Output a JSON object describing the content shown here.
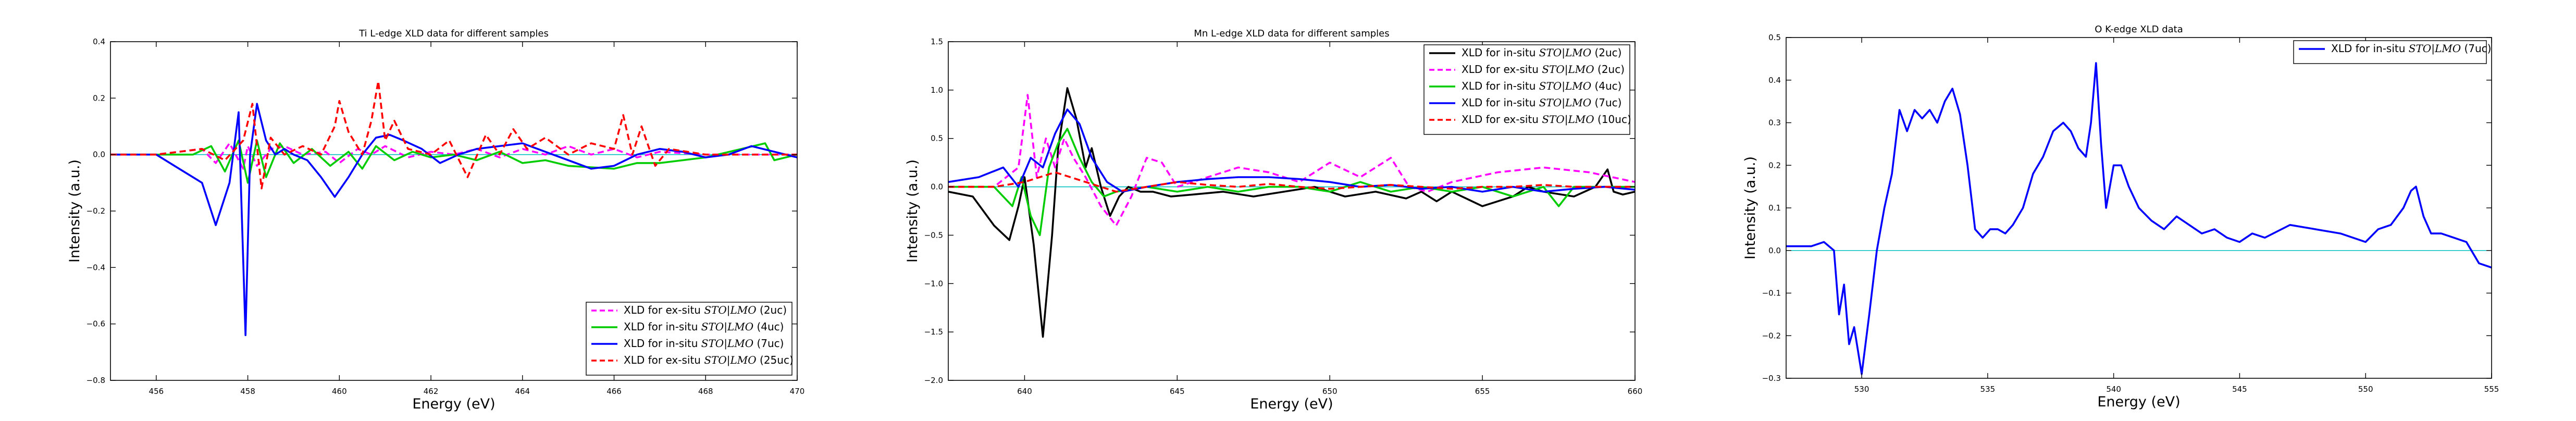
{
  "chart_data": [
    {
      "type": "line",
      "title": "Ti L-edge XLD data for different samples",
      "xlabel": "Energy (eV)",
      "ylabel": "Intensity (a.u.)",
      "xlim": [
        455,
        470
      ],
      "ylim": [
        -0.8,
        0.4
      ],
      "xticks": [
        456,
        458,
        460,
        462,
        464,
        466,
        468,
        470
      ],
      "xtick_labels": [
        "456",
        "458",
        "460",
        "462",
        "464",
        "466",
        "468",
        "470"
      ],
      "yticks": [
        -0.8,
        -0.6,
        -0.4,
        -0.2,
        0.0,
        0.2,
        0.4
      ],
      "ytick_labels": [
        "−0.8",
        "−0.6",
        "−0.4",
        "−0.2",
        "0.0",
        "0.2",
        "0.4"
      ],
      "legend_position": "lower-right",
      "grid": false,
      "baseline": 0,
      "series": [
        {
          "name": "XLD for ex-situ",
          "name_math": "STO|LMO",
          "name_suffix": "(2uc)",
          "color": "#ff00ff",
          "dash": "dashed",
          "x": [
            455,
            456,
            457,
            457.3,
            457.6,
            457.9,
            458.0,
            458.2,
            458.5,
            458.8,
            459.2,
            459.7,
            460.0,
            460.4,
            460.7,
            461.0,
            461.5,
            462,
            462.5,
            463,
            463.5,
            464,
            464.5,
            465,
            465.5,
            466,
            466.5,
            467,
            468,
            469,
            470
          ],
          "y": [
            0,
            0.0,
            0.02,
            -0.03,
            0.04,
            -0.05,
            0.03,
            -0.04,
            0.02,
            0.03,
            0.0,
            0.01,
            -0.03,
            0.02,
            0.0,
            0.03,
            -0.01,
            0.01,
            0.0,
            0.02,
            -0.01,
            0.02,
            0.0,
            0.03,
            0.0,
            0.02,
            -0.01,
            0.01,
            0.0,
            0.0,
            0
          ]
        },
        {
          "name": "XLD for in-situ",
          "name_math": "STO|LMO",
          "name_suffix": "(4uc)",
          "color": "#00cc00",
          "dash": "solid",
          "x": [
            455,
            456,
            456.8,
            457.2,
            457.5,
            457.8,
            458.0,
            458.2,
            458.4,
            458.7,
            459.0,
            459.4,
            459.8,
            460.2,
            460.5,
            460.8,
            461.2,
            461.6,
            462,
            462.5,
            463,
            463.5,
            464,
            464.5,
            465,
            466,
            466.5,
            467,
            468,
            469.3,
            469.5,
            470
          ],
          "y": [
            0,
            0.0,
            0.0,
            0.03,
            -0.06,
            0.05,
            -0.1,
            0.05,
            -0.08,
            0.04,
            -0.03,
            0.02,
            -0.04,
            0.01,
            -0.05,
            0.03,
            -0.02,
            0.01,
            -0.01,
            0.0,
            -0.02,
            0.01,
            -0.03,
            -0.02,
            -0.04,
            -0.05,
            -0.03,
            -0.03,
            -0.01,
            0.04,
            -0.02,
            0
          ]
        },
        {
          "name": "XLD for in-situ",
          "name_math": "STO|LMO",
          "name_suffix": "(7uc)",
          "color": "#0000ff",
          "dash": "solid",
          "x": [
            455,
            456,
            456.5,
            457,
            457.3,
            457.6,
            457.8,
            457.95,
            458.05,
            458.2,
            458.4,
            458.6,
            458.8,
            459.0,
            459.3,
            459.6,
            459.9,
            460.2,
            460.5,
            460.8,
            461.1,
            461.4,
            461.8,
            462.2,
            462.6,
            463,
            463.5,
            464,
            464.5,
            465,
            465.5,
            466,
            466.5,
            467,
            467.5,
            468,
            468.5,
            469,
            469.5,
            470
          ],
          "y": [
            0,
            0.0,
            -0.05,
            -0.1,
            -0.25,
            -0.1,
            0.15,
            -0.64,
            0.0,
            0.18,
            0.05,
            0.0,
            0.02,
            0.0,
            -0.02,
            -0.08,
            -0.15,
            -0.08,
            0.0,
            0.06,
            0.07,
            0.05,
            0.02,
            -0.03,
            0.0,
            0.02,
            0.03,
            0.04,
            0.01,
            -0.02,
            -0.05,
            -0.04,
            0.0,
            0.02,
            0.01,
            -0.01,
            0.0,
            0.03,
            0.01,
            -0.01
          ]
        },
        {
          "name": "XLD for ex-situ",
          "name_math": "STO|LMO",
          "name_suffix": "(25uc)",
          "color": "#ff0000",
          "dash": "dashed",
          "x": [
            455,
            456,
            457,
            457.5,
            457.9,
            458.1,
            458.3,
            458.5,
            458.8,
            459.2,
            459.6,
            459.9,
            460.0,
            460.2,
            460.5,
            460.7,
            460.85,
            461.0,
            461.2,
            461.5,
            462,
            462.4,
            462.8,
            463.2,
            463.5,
            463.8,
            464.1,
            464.5,
            465,
            465.5,
            466,
            466.2,
            466.4,
            466.6,
            466.9,
            467.2,
            468,
            469,
            470
          ],
          "y": [
            0,
            0.0,
            0.02,
            -0.02,
            0.05,
            0.18,
            -0.12,
            0.06,
            0.0,
            0.03,
            0.0,
            0.1,
            0.19,
            0.08,
            0.0,
            0.12,
            0.26,
            0.05,
            0.12,
            0.02,
            0.0,
            0.05,
            -0.08,
            0.07,
            0.0,
            0.09,
            0.02,
            0.06,
            0.0,
            0.04,
            0.02,
            0.14,
            0.0,
            0.1,
            -0.04,
            0.02,
            0.0,
            0.0,
            0
          ]
        }
      ]
    },
    {
      "type": "line",
      "title": "Mn L-edge XLD data for different samples",
      "xlabel": "Energy (eV)",
      "ylabel": "Intensity (a.u.)",
      "xlim": [
        637.5,
        660
      ],
      "ylim": [
        -2.0,
        1.5
      ],
      "xticks": [
        640,
        645,
        650,
        655,
        660
      ],
      "xtick_labels": [
        "640",
        "645",
        "650",
        "655",
        "660"
      ],
      "yticks": [
        -2.0,
        -1.5,
        -1.0,
        -0.5,
        0.0,
        0.5,
        1.0,
        1.5
      ],
      "ytick_labels": [
        "−2.0",
        "−1.5",
        "−1.0",
        "−0.5",
        "0.0",
        "0.5",
        "1.0",
        "1.5"
      ],
      "legend_position": "top-right",
      "grid": false,
      "baseline": 0,
      "series": [
        {
          "name": "XLD for in-situ",
          "name_math": "STO|LMO",
          "name_suffix": "(2uc)",
          "color": "#000000",
          "dash": "solid",
          "x": [
            637.5,
            638.3,
            639.0,
            639.5,
            639.8,
            640.0,
            640.3,
            640.6,
            640.9,
            641.1,
            641.4,
            641.7,
            642.0,
            642.2,
            642.5,
            642.8,
            643.1,
            643.4,
            643.8,
            644.2,
            644.8,
            645.5,
            646.5,
            647.5,
            648.5,
            649.5,
            650.5,
            651.5,
            652.5,
            653.0,
            653.5,
            654.0,
            655.0,
            656.0,
            656.5,
            657.0,
            658.0,
            658.7,
            659.1,
            659.3,
            659.6,
            660
          ],
          "y": [
            -0.05,
            -0.1,
            -0.4,
            -0.55,
            -0.2,
            0.1,
            -0.6,
            -1.55,
            -0.5,
            0.4,
            1.02,
            0.7,
            0.2,
            0.4,
            0.0,
            -0.3,
            -0.1,
            0.0,
            -0.05,
            -0.05,
            -0.1,
            -0.08,
            -0.05,
            -0.1,
            -0.05,
            0.0,
            -0.1,
            -0.05,
            -0.12,
            -0.05,
            -0.15,
            -0.05,
            -0.2,
            -0.1,
            0.0,
            -0.05,
            -0.1,
            0.0,
            0.18,
            -0.05,
            -0.08,
            -0.05
          ]
        },
        {
          "name": "XLD for ex-situ",
          "name_math": "STO|LMO",
          "name_suffix": "(2uc)",
          "color": "#ff00ff",
          "dash": "dashed",
          "x": [
            637.5,
            639.0,
            639.8,
            640.1,
            640.4,
            640.7,
            641.0,
            641.3,
            641.6,
            642.0,
            642.5,
            643.0,
            643.5,
            644.0,
            644.5,
            645.0,
            646.0,
            647.0,
            648.0,
            649.0,
            650.0,
            651.0,
            652.0,
            652.6,
            653.2,
            654.0,
            655.5,
            657.0,
            658.5,
            660
          ],
          "y": [
            0.0,
            0.0,
            0.2,
            0.95,
            0.1,
            0.5,
            0.2,
            0.5,
            0.3,
            0.1,
            -0.2,
            -0.4,
            -0.1,
            0.3,
            0.25,
            0.0,
            0.1,
            0.2,
            0.15,
            0.05,
            0.25,
            0.1,
            0.3,
            0.0,
            -0.05,
            0.05,
            0.15,
            0.2,
            0.15,
            0.05
          ]
        },
        {
          "name": "XLD for in-situ",
          "name_math": "STO|LMO",
          "name_suffix": "(4uc)",
          "color": "#00cc00",
          "dash": "solid",
          "x": [
            637.5,
            639.0,
            639.6,
            639.9,
            640.2,
            640.5,
            640.8,
            641.1,
            641.4,
            641.8,
            642.2,
            642.6,
            643.0,
            644.0,
            645.0,
            646.0,
            647.0,
            648.0,
            649.0,
            650.0,
            651.0,
            652.0,
            653.0,
            654.0,
            655.0,
            656.0,
            657.0,
            657.5,
            658.0,
            660
          ],
          "y": [
            0.0,
            0.0,
            -0.2,
            0.1,
            -0.3,
            -0.5,
            0.2,
            0.45,
            0.6,
            0.3,
            0.05,
            -0.1,
            -0.05,
            0.0,
            -0.05,
            0.0,
            -0.05,
            0.0,
            0.0,
            -0.05,
            0.05,
            -0.05,
            0.0,
            -0.05,
            0.0,
            -0.1,
            0.0,
            -0.2,
            0.0,
            0.0
          ]
        },
        {
          "name": "XLD for in-situ",
          "name_math": "STO|LMO",
          "name_suffix": "(7uc)",
          "color": "#0000ff",
          "dash": "solid",
          "x": [
            637.5,
            638.5,
            639.3,
            639.8,
            640.2,
            640.6,
            641.0,
            641.4,
            641.8,
            642.2,
            642.7,
            643.2,
            644.0,
            645.0,
            646.0,
            647.0,
            648.0,
            649.0,
            650.0,
            651.0,
            652.0,
            653.0,
            654.0,
            655.0,
            656.0,
            657.0,
            658.0,
            659.0,
            660
          ],
          "y": [
            0.05,
            0.1,
            0.2,
            0.0,
            0.3,
            0.2,
            0.55,
            0.8,
            0.65,
            0.3,
            0.05,
            -0.05,
            0.0,
            0.05,
            0.08,
            0.1,
            0.1,
            0.08,
            0.05,
            0.0,
            0.02,
            -0.02,
            0.0,
            -0.05,
            0.0,
            -0.05,
            -0.02,
            0.0,
            -0.03
          ]
        },
        {
          "name": "XLD for ex-situ",
          "name_math": "STO|LMO",
          "name_suffix": "(10uc)",
          "color": "#ff0000",
          "dash": "dashed",
          "x": [
            637.5,
            639.0,
            640.0,
            641.0,
            642.0,
            643.0,
            644.0,
            645.0,
            646.0,
            647.0,
            648.0,
            649.0,
            650.0,
            651.0,
            652.0,
            653.0,
            654.0,
            655.0,
            656.0,
            657.0,
            658.0,
            659.0,
            660
          ],
          "y": [
            0.0,
            0.0,
            0.05,
            0.15,
            0.05,
            -0.05,
            0.0,
            0.05,
            0.02,
            0.0,
            0.03,
            0.0,
            -0.02,
            0.0,
            0.02,
            0.0,
            -0.02,
            0.0,
            0.0,
            0.02,
            0.0,
            0.0,
            0.0
          ]
        }
      ]
    },
    {
      "type": "line",
      "title": "O K-edge XLD data",
      "xlabel": "Energy (eV)",
      "ylabel": "Intensity (a.u.)",
      "xlim": [
        527,
        555
      ],
      "ylim": [
        -0.3,
        0.5
      ],
      "xticks": [
        530,
        535,
        540,
        545,
        550,
        555
      ],
      "xtick_labels": [
        "530",
        "535",
        "540",
        "545",
        "550",
        "555"
      ],
      "yticks": [
        -0.3,
        -0.2,
        -0.1,
        0.0,
        0.1,
        0.2,
        0.3,
        0.4,
        0.5
      ],
      "ytick_labels": [
        "−0.3",
        "−0.2",
        "−0.1",
        "0.0",
        "0.1",
        "0.2",
        "0.3",
        "0.4",
        "0.5"
      ],
      "legend_position": "top-right",
      "grid": false,
      "baseline": 0,
      "series": [
        {
          "name": "XLD for in-situ",
          "name_math": "STO|LMO",
          "name_suffix": "(7uc)",
          "color": "#0000ff",
          "dash": "solid",
          "x": [
            527,
            528,
            528.5,
            528.9,
            529.1,
            529.3,
            529.5,
            529.7,
            530.0,
            530.3,
            530.6,
            530.9,
            531.2,
            531.5,
            531.8,
            532.1,
            532.4,
            532.7,
            533.0,
            533.3,
            533.6,
            533.9,
            534.2,
            534.5,
            534.8,
            535.1,
            535.4,
            535.7,
            536.0,
            536.4,
            536.8,
            537.2,
            537.6,
            538.0,
            538.3,
            538.6,
            538.9,
            539.1,
            539.3,
            539.5,
            539.7,
            540.0,
            540.3,
            540.6,
            541.0,
            541.5,
            542.0,
            542.5,
            543.0,
            543.5,
            544.0,
            544.5,
            545.0,
            545.5,
            546.0,
            547.0,
            548.0,
            549.0,
            550.0,
            550.5,
            551.0,
            551.5,
            551.8,
            552.0,
            552.3,
            552.6,
            553.0,
            553.5,
            554.0,
            554.5,
            555
          ],
          "y": [
            0.01,
            0.01,
            0.02,
            0.0,
            -0.15,
            -0.08,
            -0.22,
            -0.18,
            -0.29,
            -0.15,
            0.0,
            0.1,
            0.18,
            0.33,
            0.28,
            0.33,
            0.31,
            0.33,
            0.3,
            0.35,
            0.38,
            0.32,
            0.2,
            0.05,
            0.03,
            0.05,
            0.05,
            0.04,
            0.06,
            0.1,
            0.18,
            0.22,
            0.28,
            0.3,
            0.28,
            0.24,
            0.22,
            0.3,
            0.44,
            0.25,
            0.1,
            0.2,
            0.2,
            0.15,
            0.1,
            0.07,
            0.05,
            0.08,
            0.06,
            0.04,
            0.05,
            0.03,
            0.02,
            0.04,
            0.03,
            0.06,
            0.05,
            0.04,
            0.02,
            0.05,
            0.06,
            0.1,
            0.14,
            0.15,
            0.08,
            0.04,
            0.04,
            0.03,
            0.02,
            -0.03,
            -0.04
          ]
        }
      ]
    }
  ]
}
